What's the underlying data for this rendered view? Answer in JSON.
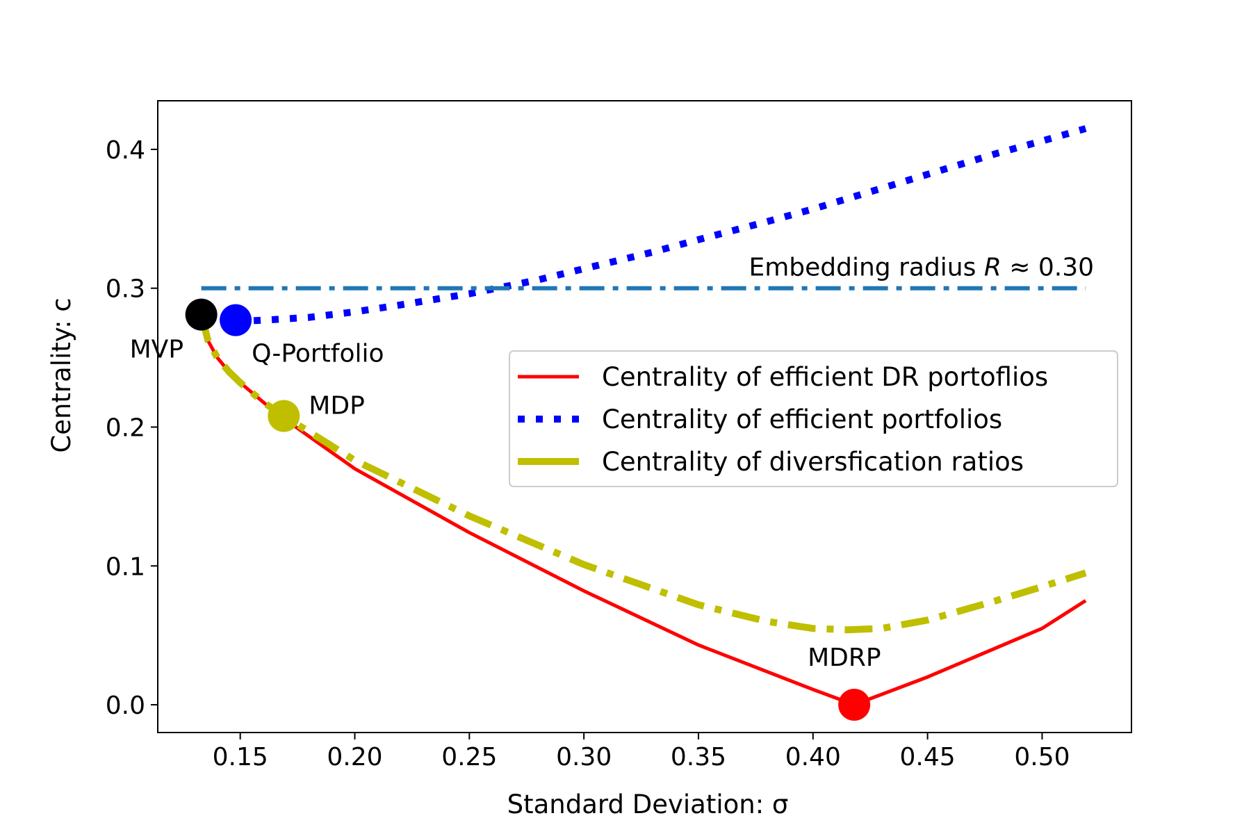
{
  "chart_data": {
    "type": "line",
    "title": "",
    "xlabel": "Standard Deviation: σ",
    "ylabel": "Centrality: c",
    "xlim": [
      0.114,
      0.539
    ],
    "ylim": [
      -0.02,
      0.435
    ],
    "xticks": [
      0.15,
      0.2,
      0.25,
      0.3,
      0.35,
      0.4,
      0.45,
      0.5
    ],
    "xtick_labels": [
      "0.15",
      "0.20",
      "0.25",
      "0.30",
      "0.35",
      "0.40",
      "0.45",
      "0.50"
    ],
    "yticks": [
      0.0,
      0.1,
      0.2,
      0.3,
      0.4
    ],
    "ytick_labels": [
      "0.0",
      "0.1",
      "0.2",
      "0.3",
      "0.4"
    ],
    "grid": false,
    "legend_position": "center-right",
    "series": [
      {
        "name": "Centrality of efficient DR portoflios",
        "color": "#ff0000",
        "style": "solid",
        "x": [
          0.133,
          0.136,
          0.14,
          0.145,
          0.15,
          0.16,
          0.17,
          0.2,
          0.25,
          0.3,
          0.35,
          0.4,
          0.418,
          0.45,
          0.5,
          0.519
        ],
        "y": [
          0.281,
          0.262,
          0.25,
          0.24,
          0.232,
          0.218,
          0.205,
          0.17,
          0.124,
          0.082,
          0.043,
          0.011,
          0.0,
          0.02,
          0.055,
          0.075
        ]
      },
      {
        "name": "Centrality of efficient portfolios",
        "color": "#0000ff",
        "style": "dotted",
        "x": [
          0.148,
          0.16,
          0.18,
          0.2,
          0.22,
          0.25,
          0.28,
          0.3,
          0.33,
          0.35,
          0.38,
          0.4,
          0.43,
          0.45,
          0.48,
          0.5,
          0.519
        ],
        "y": [
          0.276,
          0.277,
          0.279,
          0.283,
          0.288,
          0.296,
          0.306,
          0.314,
          0.326,
          0.335,
          0.348,
          0.357,
          0.372,
          0.382,
          0.397,
          0.406,
          0.415
        ]
      },
      {
        "name": "Centrality of diversfication ratios",
        "color": "#bfbf00",
        "style": "dashdot",
        "x": [
          0.133,
          0.136,
          0.14,
          0.145,
          0.15,
          0.16,
          0.169,
          0.2,
          0.25,
          0.3,
          0.35,
          0.38,
          0.4,
          0.415,
          0.43,
          0.45,
          0.48,
          0.5,
          0.519
        ],
        "y": [
          0.281,
          0.262,
          0.25,
          0.24,
          0.232,
          0.218,
          0.208,
          0.176,
          0.136,
          0.101,
          0.072,
          0.06,
          0.055,
          0.054,
          0.055,
          0.061,
          0.075,
          0.085,
          0.095
        ]
      }
    ],
    "reference_line": {
      "label": "Embedding radius",
      "symbol": "R",
      "value_text": "≈ 0.30",
      "y": 0.3,
      "x_range": [
        0.133,
        0.519
      ],
      "color": "#1f77b4",
      "style": "dashdot"
    },
    "points": [
      {
        "label": "MVP",
        "x": 0.133,
        "y": 0.281,
        "color": "#000000"
      },
      {
        "label": "Q-Portfolio",
        "x": 0.148,
        "y": 0.277,
        "color": "#0000ff"
      },
      {
        "label": "MDP",
        "x": 0.169,
        "y": 0.208,
        "color": "#bfbf00"
      },
      {
        "label": "MDRP",
        "x": 0.418,
        "y": 0.0,
        "color": "#ff0000"
      }
    ]
  }
}
